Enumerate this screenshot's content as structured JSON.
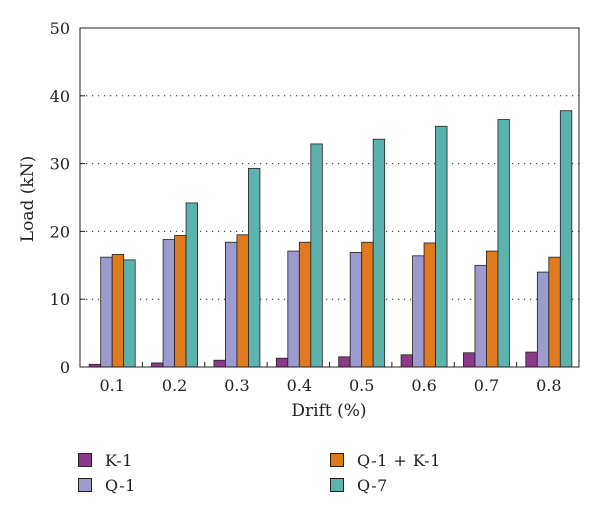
{
  "chart_data": {
    "type": "bar",
    "xlabel": "Drift (%)",
    "ylabel": "Load (kN)",
    "categories": [
      "0.1",
      "0.2",
      "0.3",
      "0.4",
      "0.5",
      "0.6",
      "0.7",
      "0.8"
    ],
    "ylim": [
      0,
      50
    ],
    "yticks": [
      0,
      10,
      20,
      30,
      40,
      50
    ],
    "grid": "horizontal dotted",
    "legend_position": "bottom",
    "series": [
      {
        "name": "K-1",
        "color": "#8b3a8b",
        "values": [
          0.4,
          0.6,
          1.0,
          1.3,
          1.5,
          1.8,
          2.1,
          2.2
        ]
      },
      {
        "name": "Q-1",
        "color": "#9d9ad0",
        "values": [
          16.2,
          18.8,
          18.4,
          17.1,
          16.9,
          16.4,
          15.0,
          14.0
        ]
      },
      {
        "name": "Q-1 + K-1",
        "color": "#e07a1f",
        "values": [
          16.6,
          19.4,
          19.5,
          18.4,
          18.4,
          18.3,
          17.1,
          16.2
        ]
      },
      {
        "name": "Q-7",
        "color": "#5cb2ac",
        "values": [
          15.8,
          24.2,
          29.3,
          32.9,
          33.6,
          35.5,
          36.5,
          37.8
        ]
      }
    ]
  }
}
